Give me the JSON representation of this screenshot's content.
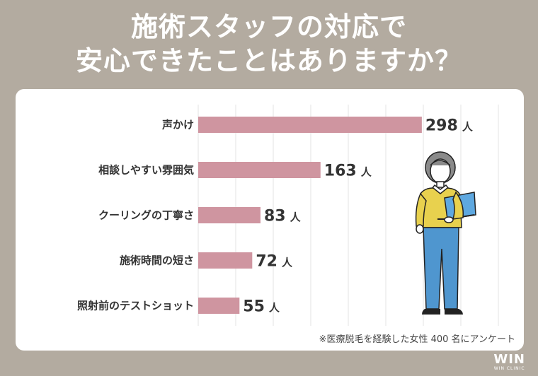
{
  "title": {
    "line1": "施術スタッフの対応で",
    "line2": "安心できたことはありますか？"
  },
  "chart_data": {
    "type": "bar",
    "orientation": "horizontal",
    "categories": [
      "声かけ",
      "相談しやすい雰囲気",
      "クーリングの丁寧さ",
      "施術時間の短さ",
      "照射前のテストショット"
    ],
    "values": [
      298,
      163,
      83,
      72,
      55
    ],
    "value_unit": "人",
    "bar_color": "#cf95a0",
    "grid": true,
    "grid_color": "#e3e3e3",
    "xlim": [
      0,
      400
    ]
  },
  "note": "※医療脱毛を経験した女性 400 名にアンケート",
  "logo": {
    "mark": "WIN",
    "sub": "WIN CLINIC"
  },
  "colors": {
    "background": "#b3aba0",
    "card": "#ffffff",
    "text": "#333333"
  },
  "illustration": {
    "icon": "woman-with-laptop-icon"
  }
}
